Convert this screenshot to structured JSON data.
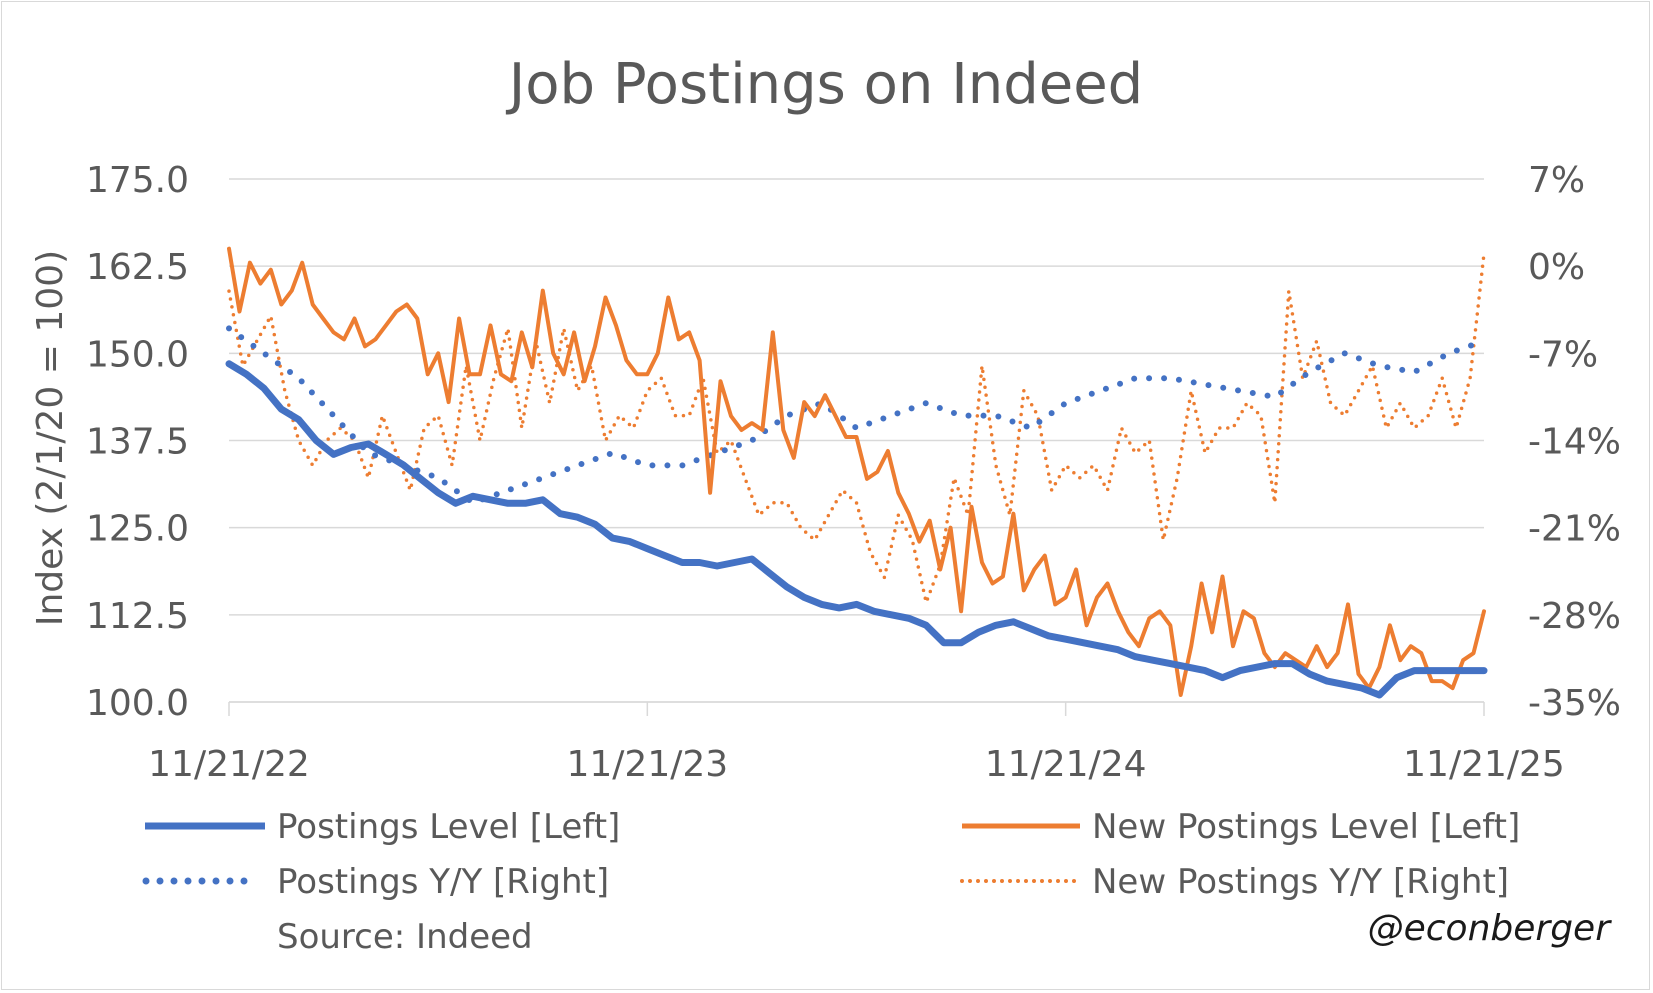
{
  "chart_data": {
    "type": "line",
    "title": "Job Postings on Indeed",
    "ylabel": "Index (2/1/20 = 100)",
    "ylim": [
      100,
      175
    ],
    "y2lim": [
      -35,
      7
    ],
    "yticks": [
      "100.0",
      "112.5",
      "125.0",
      "137.5",
      "150.0",
      "162.5",
      "175.0"
    ],
    "y2ticks": [
      "-35%",
      "-28%",
      "-21%",
      "-14%",
      "-7%",
      "0%",
      "7%"
    ],
    "xticks": [
      "11/21/22",
      "11/21/23",
      "11/21/24",
      "11/21/25"
    ],
    "x_domain": [
      "11/21/22",
      "11/21/25"
    ],
    "grid": "horizontal",
    "legend_position": "bottom",
    "source": "Source: Indeed",
    "credit": "@econberger",
    "colors": {
      "blue": "#4472c4",
      "orange": "#ed7d31",
      "grid": "#d9d9d9",
      "text": "#595959"
    },
    "series": [
      {
        "name": "Postings Level [Left]",
        "axis": "left",
        "style": "solid",
        "color": "#4472c4",
        "x": [
          0,
          0.5,
          1,
          1.5,
          2,
          2.5,
          3,
          3.5,
          4,
          4.5,
          5,
          5.5,
          6,
          6.5,
          7,
          7.5,
          8,
          8.5,
          9,
          9.5,
          10,
          10.5,
          11,
          11.5,
          12,
          12.5,
          13,
          13.5,
          14,
          14.5,
          15,
          15.5,
          16,
          16.5,
          17,
          17.5,
          18,
          18.5,
          19,
          19.5,
          20,
          20.5,
          21,
          21.5,
          22,
          22.5,
          23,
          23.5,
          24,
          24.5,
          25,
          25.5,
          26,
          26.5,
          27,
          27.5,
          28,
          28.5,
          29,
          29.5,
          30,
          30.5,
          31,
          31.5,
          32,
          32.5,
          33,
          33.5,
          34,
          34.5,
          35,
          35.5,
          36
        ],
        "values": [
          148.5,
          147,
          145,
          142,
          140.5,
          137.5,
          135.5,
          136.5,
          137,
          135.5,
          134,
          132,
          130,
          128.5,
          129.5,
          129,
          128.5,
          128.5,
          129,
          127,
          126.5,
          125.5,
          123.5,
          123,
          122,
          121,
          120,
          120,
          119.5,
          120,
          120.5,
          118.5,
          116.5,
          115,
          114,
          113.5,
          114,
          113,
          112.5,
          112,
          111,
          108.5,
          108.5,
          110,
          111,
          111.5,
          110.5,
          109.5,
          109,
          108.5,
          108,
          107.5,
          106.5,
          106,
          105.5,
          105,
          104.5,
          103.5,
          104.5,
          105,
          105.5,
          105.5,
          104,
          103,
          102.5,
          102,
          101,
          103.5,
          104.5,
          104.5,
          104.5,
          104.5,
          104.5
        ]
      },
      {
        "name": "New Postings Level [Left]",
        "axis": "left",
        "style": "solid",
        "color": "#ed7d31",
        "x": [
          0,
          0.3,
          0.6,
          0.9,
          1.2,
          1.5,
          1.8,
          2.1,
          2.4,
          2.7,
          3.0,
          3.3,
          3.6,
          3.9,
          4.2,
          4.5,
          4.8,
          5.1,
          5.4,
          5.7,
          6.0,
          6.3,
          6.6,
          6.9,
          7.2,
          7.5,
          7.8,
          8.1,
          8.4,
          8.7,
          9.0,
          9.3,
          9.6,
          9.9,
          10.2,
          10.5,
          10.8,
          11.1,
          11.4,
          11.7,
          12.0,
          12.3,
          12.6,
          12.9,
          13.2,
          13.5,
          13.8,
          14.1,
          14.4,
          14.7,
          15.0,
          15.3,
          15.6,
          15.9,
          16.2,
          16.5,
          16.8,
          17.1,
          17.4,
          17.7,
          18.0,
          18.3,
          18.6,
          18.9,
          19.2,
          19.5,
          19.8,
          20.1,
          20.4,
          20.7,
          21.0,
          21.3,
          21.6,
          21.9,
          22.2,
          22.5,
          22.8,
          23.1,
          23.4,
          23.7,
          24.0,
          24.3,
          24.6,
          24.9,
          25.2,
          25.5,
          25.8,
          26.1,
          26.4,
          26.7,
          27.0,
          27.3,
          27.6,
          27.9,
          28.2,
          28.5,
          28.8,
          29.1,
          29.4,
          29.7,
          30.0,
          30.3,
          30.6,
          30.9,
          31.2,
          31.5,
          31.8,
          32.1,
          32.4,
          32.7,
          33.0,
          33.3,
          33.6,
          33.9,
          34.2,
          34.5,
          34.8,
          35.1,
          35.4,
          35.7,
          36.0
        ],
        "values": [
          165,
          156,
          163,
          160,
          162,
          157,
          159,
          163,
          157,
          155,
          153,
          152,
          155,
          151,
          152,
          154,
          156,
          157,
          155,
          147,
          150,
          143,
          155,
          147,
          147,
          154,
          147,
          146,
          153,
          148,
          159,
          150,
          147,
          153,
          146,
          151,
          158,
          154,
          149,
          147,
          147,
          150,
          158,
          152,
          153,
          149,
          130,
          146,
          141,
          139,
          140,
          139,
          153,
          139,
          135,
          143,
          141,
          144,
          141,
          138,
          138,
          132,
          133,
          136,
          130,
          127,
          123,
          126,
          119,
          125,
          113,
          128,
          120,
          117,
          118,
          127,
          116,
          119,
          121,
          114,
          115,
          119,
          111,
          115,
          117,
          113,
          110,
          108,
          112,
          113,
          111,
          101,
          108,
          117,
          110,
          118,
          108,
          113,
          112,
          107,
          105,
          107,
          106,
          105,
          108,
          105,
          107,
          114,
          104,
          102,
          105,
          111,
          106,
          108,
          107,
          103,
          103,
          102,
          106,
          107,
          113
        ]
      },
      {
        "name": "Postings Y/Y [Right]",
        "axis": "right",
        "style": "dotted",
        "color": "#4472c4",
        "x": [
          0,
          1,
          2,
          3,
          4,
          5,
          6,
          7,
          8,
          9,
          10,
          11,
          12,
          13,
          14,
          15,
          16,
          17,
          18,
          19,
          20,
          21,
          22,
          23,
          24,
          25,
          26,
          27,
          28,
          29,
          30,
          31,
          32,
          33,
          34,
          35,
          36
        ],
        "values": [
          -5,
          -7,
          -9,
          -12,
          -15,
          -16,
          -17,
          -19,
          -18,
          -17,
          -16,
          -15,
          -16,
          -16,
          -15,
          -14,
          -12,
          -11,
          -13,
          -12,
          -11,
          -12,
          -12,
          -13,
          -11,
          -10,
          -9,
          -9,
          -9.5,
          -10,
          -10.5,
          -8.5,
          -7,
          -8,
          -8.5,
          -7,
          -6
        ]
      },
      {
        "name": "New Postings Y/Y [Right]",
        "axis": "right",
        "style": "dotted",
        "color": "#ed7d31",
        "x": [
          0,
          0.4,
          0.8,
          1.2,
          1.6,
          2.0,
          2.4,
          2.8,
          3.2,
          3.6,
          4.0,
          4.4,
          4.8,
          5.2,
          5.6,
          6.0,
          6.4,
          6.8,
          7.2,
          7.6,
          8.0,
          8.4,
          8.8,
          9.2,
          9.6,
          10.0,
          10.4,
          10.8,
          11.2,
          11.6,
          12.0,
          12.4,
          12.8,
          13.2,
          13.6,
          14.0,
          14.4,
          14.8,
          15.2,
          15.6,
          16.0,
          16.4,
          16.8,
          17.2,
          17.6,
          18.0,
          18.4,
          18.8,
          19.2,
          19.6,
          20.0,
          20.4,
          20.8,
          21.2,
          21.6,
          22.0,
          22.4,
          22.8,
          23.2,
          23.6,
          24.0,
          24.4,
          24.8,
          25.2,
          25.6,
          26.0,
          26.4,
          26.8,
          27.2,
          27.6,
          28.0,
          28.4,
          28.8,
          29.2,
          29.6,
          30.0,
          30.4,
          30.8,
          31.2,
          31.6,
          32.0,
          32.4,
          32.8,
          33.2,
          33.6,
          34.0,
          34.4,
          34.8,
          35.2,
          35.6,
          36.0
        ],
        "values": [
          -2,
          -8,
          -6,
          -4,
          -10,
          -14,
          -16,
          -14,
          -13,
          -14,
          -17,
          -12,
          -15,
          -18,
          -13,
          -12,
          -16,
          -8,
          -14,
          -9,
          -5,
          -13,
          -6,
          -11,
          -5,
          -10,
          -8,
          -14,
          -12,
          -13,
          -10,
          -9,
          -12,
          -12,
          -9,
          -15,
          -14,
          -17,
          -20,
          -19,
          -19,
          -21,
          -22,
          -20,
          -18,
          -19,
          -23,
          -25,
          -20,
          -22,
          -27,
          -24,
          -17,
          -20,
          -8,
          -16,
          -20,
          -10,
          -12,
          -18,
          -16,
          -17,
          -16,
          -18,
          -13,
          -15,
          -14,
          -22,
          -17,
          -10,
          -15,
          -13,
          -13,
          -11,
          -12,
          -19,
          -2,
          -9,
          -6,
          -11,
          -12,
          -10,
          -8,
          -13,
          -11,
          -13,
          -12,
          -9,
          -13,
          -9,
          1
        ]
      }
    ]
  }
}
